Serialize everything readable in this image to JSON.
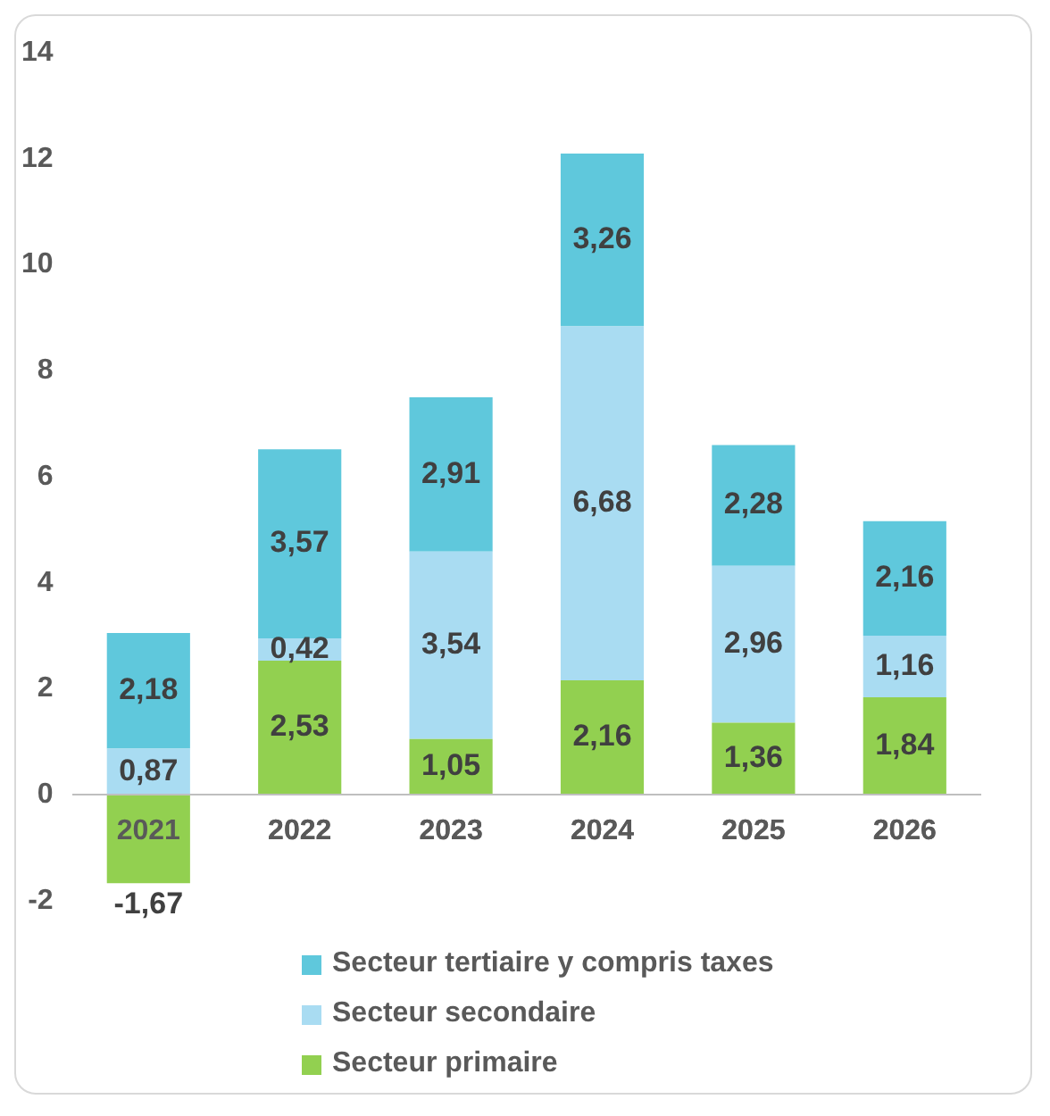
{
  "chart_data": {
    "type": "bar",
    "stacked": true,
    "categories": [
      "2021",
      "2022",
      "2023",
      "2024",
      "2025",
      "2026"
    ],
    "series": [
      {
        "name": "Secteur primaire",
        "color": "#92d050",
        "values": [
          -1.67,
          2.53,
          1.05,
          2.16,
          1.36,
          1.84
        ],
        "value_labels": [
          "-1,67",
          "2,53",
          "1,05",
          "2,16",
          "1,36",
          "1,84"
        ]
      },
      {
        "name": "Secteur secondaire",
        "color": "#a9dcf2",
        "values": [
          0.87,
          0.42,
          3.54,
          6.68,
          2.96,
          1.16
        ],
        "value_labels": [
          "0,87",
          "0,42",
          "3,54",
          "6,68",
          "2,96",
          "1,16"
        ]
      },
      {
        "name": "Secteur tertiaire y compris taxes",
        "color": "#5fc8dc",
        "values": [
          2.18,
          3.57,
          2.91,
          3.26,
          2.28,
          2.16
        ],
        "value_labels": [
          "2,18",
          "3,57",
          "2,91",
          "3,26",
          "2,28",
          "2,16"
        ]
      }
    ],
    "ylim": [
      -2,
      14
    ],
    "yticks": [
      -2,
      0,
      2,
      4,
      6,
      8,
      10,
      12,
      14
    ],
    "grid": false,
    "legend": "bottom"
  }
}
